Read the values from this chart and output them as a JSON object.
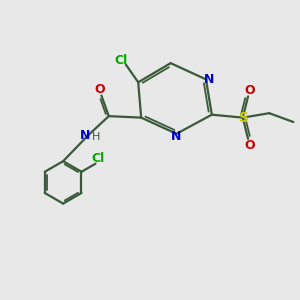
{
  "background_color": "#e8e8e8",
  "bond_color": "#3a5a3a",
  "atom_colors": {
    "N": "#0000cc",
    "O": "#cc0000",
    "Cl": "#00aa00",
    "S": "#cccc00",
    "C": "#3a5a3a",
    "H": "#3a5a3a"
  },
  "figsize": [
    3.0,
    3.0
  ],
  "dpi": 100
}
